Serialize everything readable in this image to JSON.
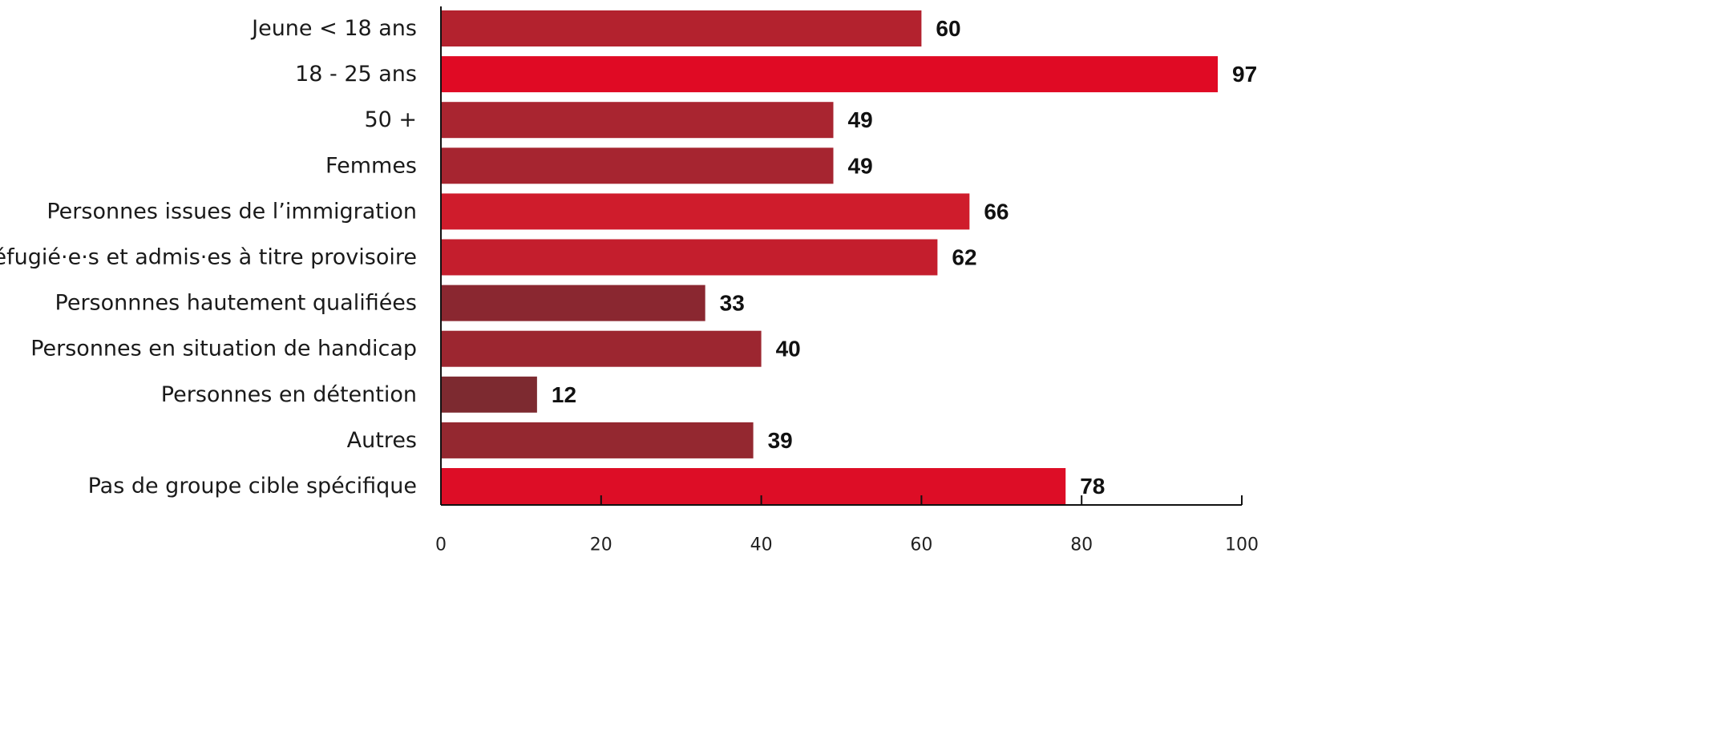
{
  "chart_data": {
    "type": "bar",
    "orientation": "horizontal",
    "title": "",
    "xlabel": "",
    "ylabel": "",
    "xlim": [
      0,
      100
    ],
    "ticks": [
      "0",
      "20",
      "40",
      "60",
      "80",
      "100"
    ],
    "tick_values": [
      0,
      20,
      40,
      60,
      80,
      100
    ],
    "grid": false,
    "legend": "none",
    "categories": [
      "Jeune < 18 ans",
      "18 - 25 ans",
      "50 +",
      "Femmes",
      "Personnes issues de l’immigration",
      "Réfugié·e·s et admis·es à titre provisoire",
      "Personnnes hautement qualifiées",
      "Personnes en situation de handicap",
      "Personnes en détention",
      "Autres",
      "Pas de groupe cible spécifique"
    ],
    "values": [
      60,
      97,
      49,
      49,
      66,
      62,
      33,
      40,
      12,
      39,
      78
    ],
    "value_labels": [
      "60",
      "97",
      "49",
      "49",
      "66",
      "62",
      "33",
      "40",
      "12",
      "39",
      "78"
    ],
    "bar_colors": [
      "#b3222e",
      "#e00a24",
      "#a92530",
      "#a62530",
      "#cf1c2c",
      "#c41e2d",
      "#8a2730",
      "#9c2630",
      "#7d2a30",
      "#942830",
      "#dd0d26"
    ]
  }
}
